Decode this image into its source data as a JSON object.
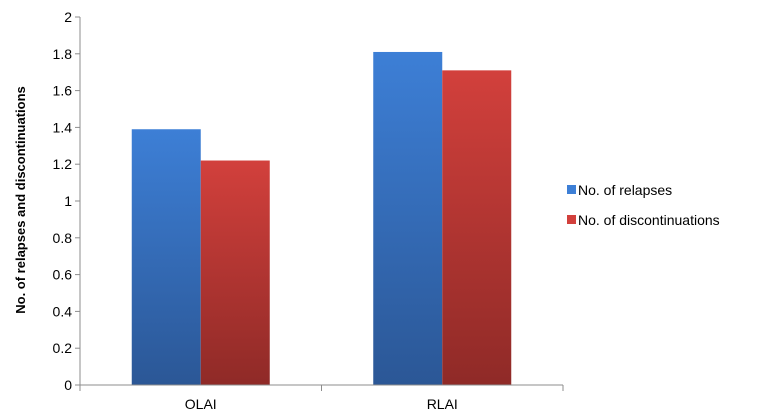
{
  "chart_data": {
    "type": "bar",
    "categories": [
      "OLAI",
      "RLAI"
    ],
    "series": [
      {
        "name": "No. of relapses",
        "values": [
          1.39,
          1.81
        ]
      },
      {
        "name": "No. of discontinuations",
        "values": [
          1.22,
          1.71
        ]
      }
    ],
    "ylabel": "No. of  relapses and discontinuations",
    "xlabel": "",
    "ylim": [
      0,
      2
    ],
    "yticks": [
      "0",
      "0.2",
      "0.4",
      "0.6",
      "0.8",
      "1",
      "1.2",
      "1.4",
      "1.6",
      "1.8",
      "2"
    ],
    "grid": false,
    "legend_position": "right",
    "colors": {
      "No. of relapses": {
        "top": "#3d7fd6",
        "bottom": "#2b5796"
      },
      "No. of discontinuations": {
        "top": "#d2403c",
        "bottom": "#8f2a27"
      }
    }
  }
}
